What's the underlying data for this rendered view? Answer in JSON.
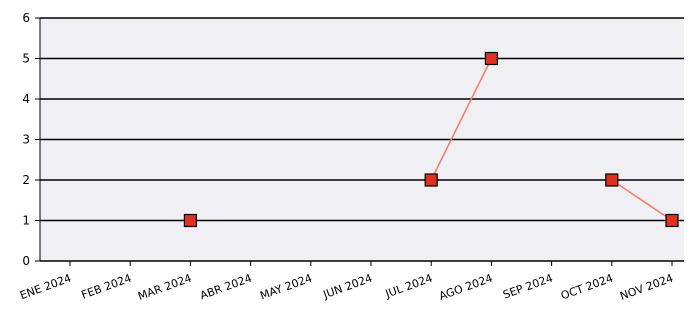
{
  "chart_data": {
    "type": "line",
    "title": "",
    "xlabel": "",
    "ylabel": "",
    "categories": [
      "ENE 2024",
      "FEB 2024",
      "MAR 2024",
      "ABR 2024",
      "MAY 2024",
      "JUN 2024",
      "JUL 2024",
      "AGO 2024",
      "SEP 2024",
      "OCT 2024",
      "NOV 2024"
    ],
    "yticks": [
      "0",
      "1",
      "2",
      "3",
      "4",
      "5",
      "6"
    ],
    "ylim": [
      0,
      6
    ],
    "grid": true,
    "series": [
      {
        "values": [
          null,
          null,
          1,
          null,
          null,
          null,
          2,
          5,
          null,
          2,
          1
        ],
        "line_color": "#f08070",
        "marker_color": "#e03020"
      }
    ],
    "plot_background": "#f0f0f4"
  }
}
